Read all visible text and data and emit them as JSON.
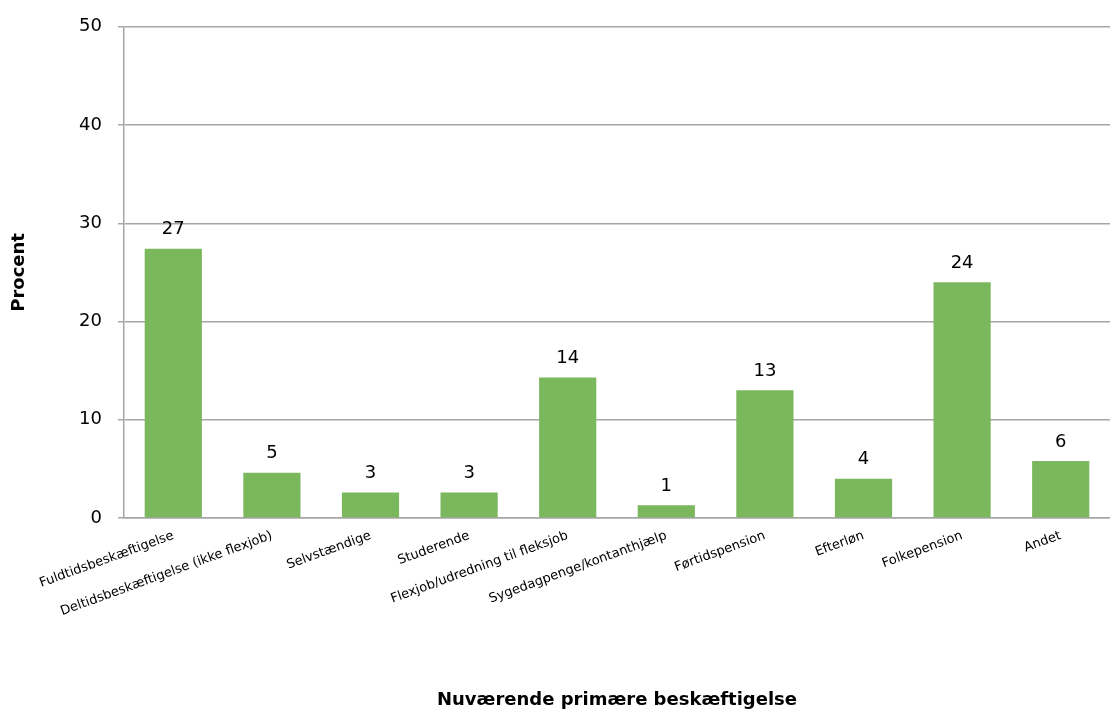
{
  "chart_data": {
    "type": "bar",
    "categories": [
      "Fuldtidsbeskæftigelse",
      "Deltidsbeskæftigelse (ikke flexjob)",
      "Selvstændige",
      "Studerende",
      "Flexjob/udredning til fleksjob",
      "Sygedagpenge/kontanthjælp",
      "Førtidspension",
      "Efterløn",
      "Folkepension",
      "Andet"
    ],
    "values": [
      27.4,
      4.6,
      2.6,
      2.6,
      14.3,
      1.3,
      13.0,
      4.0,
      24.0,
      5.8
    ],
    "value_labels": [
      "27",
      "5",
      "3",
      "3",
      "14",
      "1",
      "13",
      "4",
      "24",
      "6"
    ],
    "color": "#7ab75d",
    "xlabel": "Nuværende primære beskæftigelse",
    "ylabel": "Procent",
    "ylim": [
      0,
      50
    ],
    "yticks": [
      0,
      10,
      20,
      30,
      40,
      50
    ],
    "grid": "y"
  }
}
